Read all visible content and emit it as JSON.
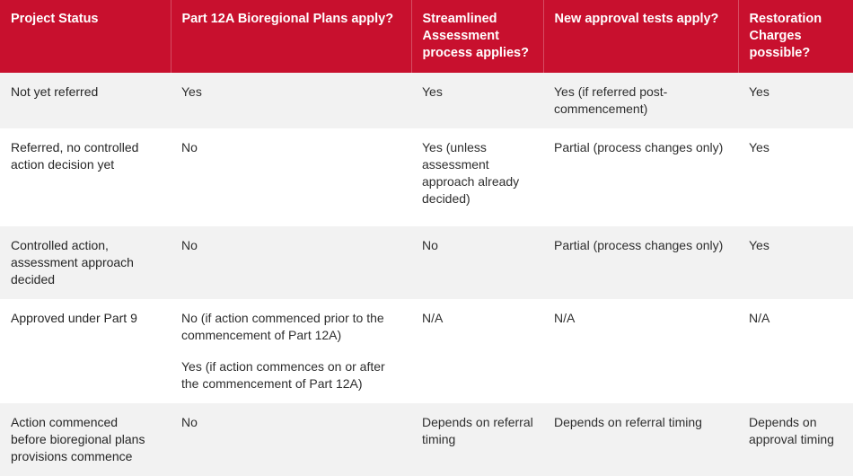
{
  "table": {
    "accent_color": "#c8102e",
    "header_text_color": "#ffffff",
    "alt_row_color": "#f2f2f2",
    "bottom_border_color": "#8e8e8e",
    "columns": [
      "Project Status",
      "Part 12A Bioregional Plans apply?",
      "Streamlined Assessment process applies?",
      "New approval tests apply?",
      "Restoration Charges possible?"
    ],
    "rows": [
      {
        "cells": [
          [
            "Not yet referred"
          ],
          [
            "Yes"
          ],
          [
            "Yes"
          ],
          [
            "Yes (if referred post-commencement)"
          ],
          [
            "Yes"
          ]
        ]
      },
      {
        "cells": [
          [
            "Referred, no controlled action decision yet"
          ],
          [
            "No"
          ],
          [
            "Yes (unless assessment approach already decided)"
          ],
          [
            "Partial (process changes only)"
          ],
          [
            "Yes"
          ]
        ]
      },
      {
        "cells": [
          [
            "Controlled action, assessment approach decided"
          ],
          [
            "No"
          ],
          [
            "No"
          ],
          [
            "Partial (process changes only)"
          ],
          [
            "Yes"
          ]
        ]
      },
      {
        "cells": [
          [
            "Approved under Part 9"
          ],
          [
            "No (if action commenced prior to the commencement of Part 12A)",
            "Yes (if action commences on or after the commencement of Part 12A)"
          ],
          [
            "N/A"
          ],
          [
            "N/A"
          ],
          [
            "N/A"
          ]
        ]
      },
      {
        "cells": [
          [
            "Action commenced before bioregional plans provisions commence"
          ],
          [
            "No"
          ],
          [
            "Depends on referral timing"
          ],
          [
            "Depends on referral timing"
          ],
          [
            "Depends on approval timing"
          ]
        ]
      }
    ]
  }
}
